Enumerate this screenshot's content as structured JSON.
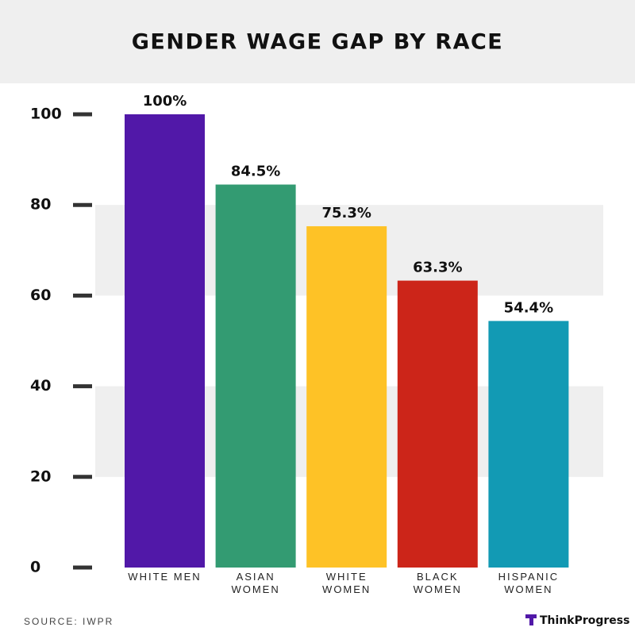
{
  "chart_data": {
    "type": "bar",
    "title": "GENDER WAGE GAP BY RACE",
    "categories": [
      "WHITE MEN",
      "ASIAN WOMEN",
      "WHITE WOMEN",
      "BLACK WOMEN",
      "HISPANIC WOMEN"
    ],
    "values": [
      100,
      84.5,
      75.3,
      63.3,
      54.4
    ],
    "value_labels": [
      "100%",
      "84.5%",
      "75.3%",
      "63.3%",
      "54.4%"
    ],
    "colors": [
      "#5118a8",
      "#339b72",
      "#fec226",
      "#cc2519",
      "#129ab4"
    ],
    "ylim": [
      0,
      100
    ],
    "yticks": [
      0,
      20,
      40,
      60,
      80,
      100
    ],
    "grid": true,
    "source": "SOURCE: IWPR",
    "brand": "ThinkProgress"
  }
}
